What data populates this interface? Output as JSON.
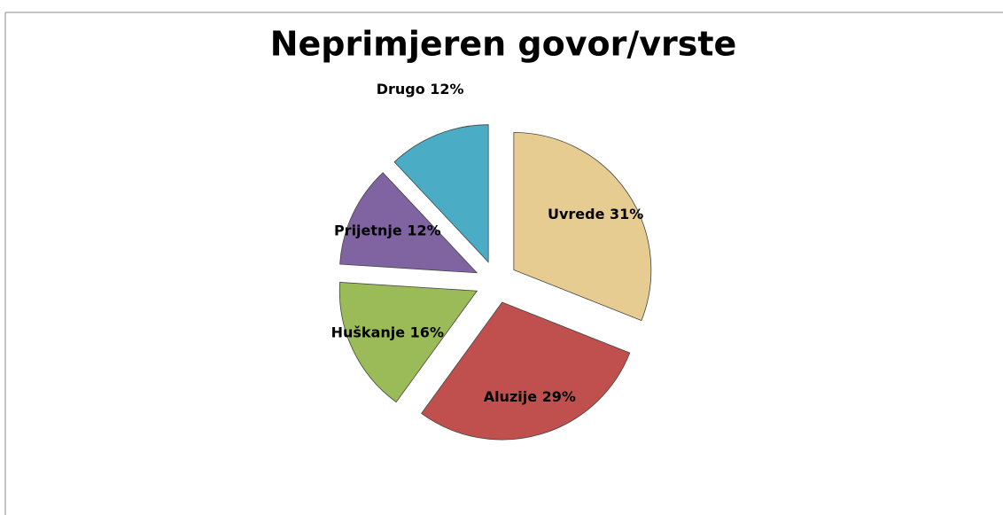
{
  "chart_data": {
    "type": "pie",
    "title": "Neprimjeren govor/vrste",
    "categories": [
      "Uvrede",
      "Aluzije",
      "Huškanje",
      "Prijetnje",
      "Drugo"
    ],
    "values": [
      31,
      29,
      16,
      12,
      12
    ],
    "value_labels": [
      "31%",
      "29%",
      "16%",
      "12%",
      "12%"
    ],
    "colors": [
      "#e6cc90",
      "#c0504d",
      "#9bbb59",
      "#8064a2",
      "#4bacc6"
    ]
  }
}
